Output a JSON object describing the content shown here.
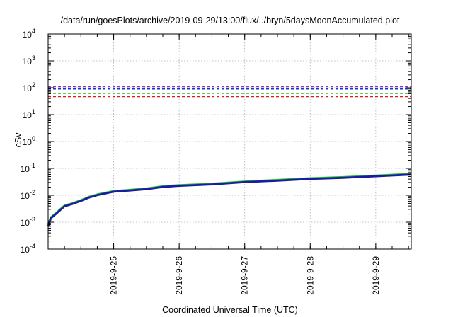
{
  "chart_data": {
    "type": "line",
    "title": "/data/run/goesPlots/archive/2019-09-29/13:00/flux/../bryn/5daysMoonAccumulated.plot",
    "xlabel": "Coordinated Universal Time (UTC)",
    "ylabel": "cSv",
    "yscale": "log",
    "ylim": [
      0.0001,
      10000
    ],
    "xlim": [
      "2019-09-24 00:00",
      "2019-09-29 13:00"
    ],
    "grid": true,
    "legend": "none",
    "y_ticks": [
      {
        "base": "10",
        "exp": "-4",
        "value": 0.0001
      },
      {
        "base": "10",
        "exp": "-3",
        "value": 0.001
      },
      {
        "base": "10",
        "exp": "-2",
        "value": 0.01
      },
      {
        "base": "10",
        "exp": "-1",
        "value": 0.1
      },
      {
        "base": "10",
        "exp": "0",
        "value": 1
      },
      {
        "base": "10",
        "exp": "1",
        "value": 10
      },
      {
        "base": "10",
        "exp": "2",
        "value": 100
      },
      {
        "base": "10",
        "exp": "3",
        "value": 1000
      },
      {
        "base": "10",
        "exp": "4",
        "value": 10000
      }
    ],
    "x_ticks": [
      {
        "label": "2019-9-25",
        "value": "2019-09-25 00:00"
      },
      {
        "label": "2019-9-26",
        "value": "2019-09-26 00:00"
      },
      {
        "label": "2019-9-27",
        "value": "2019-09-27 00:00"
      },
      {
        "label": "2019-9-28",
        "value": "2019-09-28 00:00"
      },
      {
        "label": "2019-9-29",
        "value": "2019-09-29 00:00"
      }
    ],
    "reference_lines": [
      {
        "y": 110,
        "color": "#7b3fbf",
        "style": "dashed"
      },
      {
        "y": 90,
        "color": "#1f2fd6",
        "style": "dashed"
      },
      {
        "y": 62,
        "color": "#22c322",
        "style": "dashed"
      },
      {
        "y": 47,
        "color": "#e01818",
        "style": "dashed"
      }
    ],
    "series": [
      {
        "color": "#22c322",
        "x": [
          "2019-09-24 00:00",
          "2019-09-24 01:00",
          "2019-09-24 03:00",
          "2019-09-24 06:00",
          "2019-09-24 09:00",
          "2019-09-24 12:00",
          "2019-09-24 15:00",
          "2019-09-24 18:00",
          "2019-09-24 21:00",
          "2019-09-25 00:00",
          "2019-09-25 06:00",
          "2019-09-25 12:00",
          "2019-09-25 18:00",
          "2019-09-26 00:00",
          "2019-09-26 12:00",
          "2019-09-27 00:00",
          "2019-09-27 12:00",
          "2019-09-28 00:00",
          "2019-09-28 12:00",
          "2019-09-29 00:00",
          "2019-09-29 13:00"
        ],
        "y": [
          0.0008,
          0.0015,
          0.0022,
          0.0041,
          0.005,
          0.0065,
          0.0087,
          0.0106,
          0.0123,
          0.0142,
          0.0158,
          0.0177,
          0.0215,
          0.0235,
          0.0265,
          0.0322,
          0.0368,
          0.0425,
          0.0468,
          0.0535,
          0.062
        ]
      },
      {
        "color": "#1a1aa6",
        "x": [
          "2019-09-24 00:00",
          "2019-09-24 01:00",
          "2019-09-24 03:00",
          "2019-09-24 06:00",
          "2019-09-24 09:00",
          "2019-09-24 12:00",
          "2019-09-24 15:00",
          "2019-09-24 18:00",
          "2019-09-24 21:00",
          "2019-09-25 00:00",
          "2019-09-25 06:00",
          "2019-09-25 12:00",
          "2019-09-25 18:00",
          "2019-09-26 00:00",
          "2019-09-26 12:00",
          "2019-09-27 00:00",
          "2019-09-27 12:00",
          "2019-09-28 00:00",
          "2019-09-28 12:00",
          "2019-09-29 00:00",
          "2019-09-29 13:00"
        ],
        "y": [
          0.0007,
          0.0014,
          0.0021,
          0.0039,
          0.0048,
          0.0062,
          0.0083,
          0.0101,
          0.0117,
          0.0136,
          0.0151,
          0.0169,
          0.0205,
          0.0225,
          0.0254,
          0.0308,
          0.0351,
          0.0405,
          0.0446,
          0.051,
          0.059
        ]
      }
    ]
  }
}
